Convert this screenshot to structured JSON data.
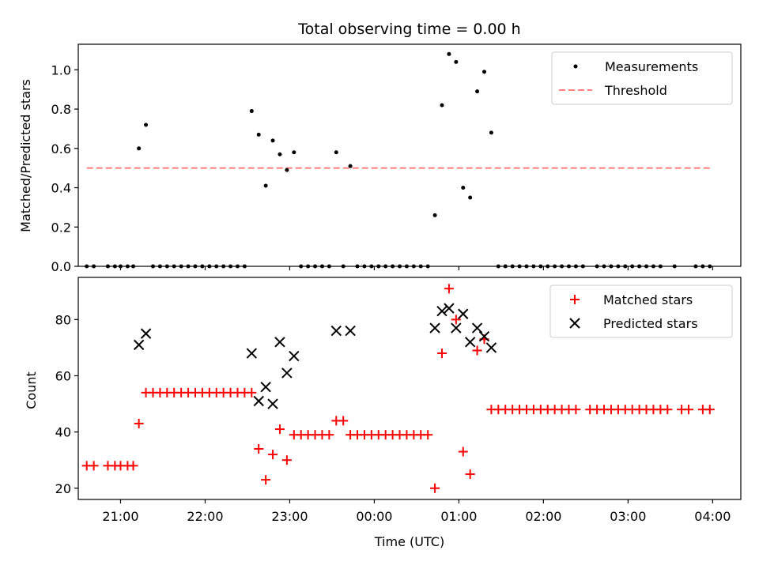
{
  "chart_data": [
    {
      "type": "scatter",
      "title": "Total observing time = 0.00 h",
      "ylabel": "Matched/Predicted stars",
      "xlabel": "",
      "ylim": [
        0,
        1.13
      ],
      "xlim": [
        "20:30",
        "04:20"
      ],
      "yticks": [
        "0.0",
        "0.2",
        "0.4",
        "0.6",
        "0.8",
        "1.0"
      ],
      "grid": false,
      "legend_position": "top-right",
      "series": [
        {
          "name": "Measurements",
          "color": "#000000",
          "marker": "dot",
          "points": [
            [
              "20:36",
              0
            ],
            [
              "20:41",
              0
            ],
            [
              "20:51",
              0
            ],
            [
              "20:56",
              0
            ],
            [
              "21:00",
              0
            ],
            [
              "21:05",
              0
            ],
            [
              "21:09",
              0
            ],
            [
              "21:13",
              0.6
            ],
            [
              "21:18",
              0.72
            ],
            [
              "21:23",
              0
            ],
            [
              "21:28",
              0
            ],
            [
              "21:33",
              0
            ],
            [
              "21:38",
              0
            ],
            [
              "21:43",
              0
            ],
            [
              "21:48",
              0
            ],
            [
              "21:53",
              0
            ],
            [
              "21:58",
              0
            ],
            [
              "22:03",
              0
            ],
            [
              "22:08",
              0
            ],
            [
              "22:13",
              0
            ],
            [
              "22:18",
              0
            ],
            [
              "22:23",
              0
            ],
            [
              "22:28",
              0
            ],
            [
              "22:33",
              0.79
            ],
            [
              "22:38",
              0.67
            ],
            [
              "22:43",
              0.41
            ],
            [
              "22:48",
              0.64
            ],
            [
              "22:53",
              0.57
            ],
            [
              "22:58",
              0.49
            ],
            [
              "23:03",
              0.58
            ],
            [
              "23:08",
              0
            ],
            [
              "23:13",
              0
            ],
            [
              "23:18",
              0
            ],
            [
              "23:23",
              0
            ],
            [
              "23:28",
              0
            ],
            [
              "23:33",
              0.58
            ],
            [
              "23:38",
              0
            ],
            [
              "23:43",
              0.51
            ],
            [
              "23:48",
              0
            ],
            [
              "23:53",
              0
            ],
            [
              "23:58",
              0
            ],
            [
              "00:03",
              0
            ],
            [
              "00:08",
              0
            ],
            [
              "00:13",
              0
            ],
            [
              "00:18",
              0
            ],
            [
              "00:23",
              0
            ],
            [
              "00:28",
              0
            ],
            [
              "00:33",
              0
            ],
            [
              "00:38",
              0
            ],
            [
              "00:43",
              0.26
            ],
            [
              "00:48",
              0.82
            ],
            [
              "00:53",
              1.08
            ],
            [
              "00:58",
              1.04
            ],
            [
              "01:03",
              0.4
            ],
            [
              "01:08",
              0.35
            ],
            [
              "01:13",
              0.89
            ],
            [
              "01:18",
              0.99
            ],
            [
              "01:23",
              0.68
            ],
            [
              "01:28",
              0
            ],
            [
              "01:33",
              0
            ],
            [
              "01:38",
              0
            ],
            [
              "01:43",
              0
            ],
            [
              "01:48",
              0
            ],
            [
              "01:53",
              0
            ],
            [
              "01:58",
              0
            ],
            [
              "02:03",
              0
            ],
            [
              "02:08",
              0
            ],
            [
              "02:13",
              0
            ],
            [
              "02:18",
              0
            ],
            [
              "02:23",
              0
            ],
            [
              "02:28",
              0
            ],
            [
              "02:38",
              0
            ],
            [
              "02:43",
              0
            ],
            [
              "02:48",
              0
            ],
            [
              "02:53",
              0
            ],
            [
              "02:58",
              0
            ],
            [
              "03:03",
              0
            ],
            [
              "03:08",
              0
            ],
            [
              "03:13",
              0
            ],
            [
              "03:18",
              0
            ],
            [
              "03:23",
              0
            ],
            [
              "03:33",
              0
            ],
            [
              "03:48",
              0
            ],
            [
              "03:53",
              0
            ],
            [
              "03:58",
              0
            ]
          ]
        },
        {
          "name": "Threshold",
          "color": "#ff7f7f",
          "marker": "dashed-line",
          "points": [
            [
              "20:36",
              0.5
            ],
            [
              "03:58",
              0.5
            ]
          ]
        }
      ]
    },
    {
      "type": "scatter",
      "title": "",
      "ylabel": "Count",
      "xlabel": "Time (UTC)",
      "ylim": [
        16,
        95
      ],
      "xlim": [
        "20:30",
        "04:20"
      ],
      "xticks": [
        "21:00",
        "22:00",
        "23:00",
        "00:00",
        "01:00",
        "02:00",
        "03:00",
        "04:00"
      ],
      "yticks": [
        "20",
        "40",
        "60",
        "80"
      ],
      "grid": false,
      "legend_position": "top-right",
      "series": [
        {
          "name": "Matched stars",
          "color": "#ff0000",
          "marker": "plus",
          "points": [
            [
              "20:36",
              28
            ],
            [
              "20:41",
              28
            ],
            [
              "20:51",
              28
            ],
            [
              "20:56",
              28
            ],
            [
              "21:00",
              28
            ],
            [
              "21:05",
              28
            ],
            [
              "21:09",
              28
            ],
            [
              "21:13",
              43
            ],
            [
              "21:18",
              54
            ],
            [
              "21:23",
              54
            ],
            [
              "21:28",
              54
            ],
            [
              "21:33",
              54
            ],
            [
              "21:38",
              54
            ],
            [
              "21:43",
              54
            ],
            [
              "21:48",
              54
            ],
            [
              "21:53",
              54
            ],
            [
              "21:58",
              54
            ],
            [
              "22:03",
              54
            ],
            [
              "22:08",
              54
            ],
            [
              "22:13",
              54
            ],
            [
              "22:18",
              54
            ],
            [
              "22:23",
              54
            ],
            [
              "22:28",
              54
            ],
            [
              "22:33",
              54
            ],
            [
              "22:38",
              34
            ],
            [
              "22:43",
              23
            ],
            [
              "22:48",
              32
            ],
            [
              "22:53",
              41
            ],
            [
              "22:58",
              30
            ],
            [
              "23:03",
              39
            ],
            [
              "23:08",
              39
            ],
            [
              "23:13",
              39
            ],
            [
              "23:18",
              39
            ],
            [
              "23:23",
              39
            ],
            [
              "23:28",
              39
            ],
            [
              "23:33",
              44
            ],
            [
              "23:38",
              44
            ],
            [
              "23:43",
              39
            ],
            [
              "23:48",
              39
            ],
            [
              "23:53",
              39
            ],
            [
              "23:58",
              39
            ],
            [
              "00:03",
              39
            ],
            [
              "00:08",
              39
            ],
            [
              "00:13",
              39
            ],
            [
              "00:18",
              39
            ],
            [
              "00:23",
              39
            ],
            [
              "00:28",
              39
            ],
            [
              "00:33",
              39
            ],
            [
              "00:38",
              39
            ],
            [
              "00:43",
              20
            ],
            [
              "00:48",
              68
            ],
            [
              "00:53",
              91
            ],
            [
              "00:58",
              80
            ],
            [
              "01:03",
              33
            ],
            [
              "01:08",
              25
            ],
            [
              "01:13",
              69
            ],
            [
              "01:18",
              73
            ],
            [
              "01:23",
              48
            ],
            [
              "01:28",
              48
            ],
            [
              "01:33",
              48
            ],
            [
              "01:38",
              48
            ],
            [
              "01:43",
              48
            ],
            [
              "01:48",
              48
            ],
            [
              "01:53",
              48
            ],
            [
              "01:58",
              48
            ],
            [
              "02:03",
              48
            ],
            [
              "02:08",
              48
            ],
            [
              "02:13",
              48
            ],
            [
              "02:18",
              48
            ],
            [
              "02:23",
              48
            ],
            [
              "02:33",
              48
            ],
            [
              "02:38",
              48
            ],
            [
              "02:43",
              48
            ],
            [
              "02:48",
              48
            ],
            [
              "02:53",
              48
            ],
            [
              "02:58",
              48
            ],
            [
              "03:03",
              48
            ],
            [
              "03:08",
              48
            ],
            [
              "03:13",
              48
            ],
            [
              "03:18",
              48
            ],
            [
              "03:23",
              48
            ],
            [
              "03:28",
              48
            ],
            [
              "03:38",
              48
            ],
            [
              "03:43",
              48
            ],
            [
              "03:53",
              48
            ],
            [
              "03:58",
              48
            ]
          ]
        },
        {
          "name": "Predicted stars",
          "color": "#000000",
          "marker": "x",
          "points": [
            [
              "21:13",
              71
            ],
            [
              "21:18",
              75
            ],
            [
              "22:33",
              68
            ],
            [
              "22:38",
              51
            ],
            [
              "22:43",
              56
            ],
            [
              "22:48",
              50
            ],
            [
              "22:53",
              72
            ],
            [
              "22:58",
              61
            ],
            [
              "23:03",
              67
            ],
            [
              "23:33",
              76
            ],
            [
              "23:43",
              76
            ],
            [
              "00:43",
              77
            ],
            [
              "00:48",
              83
            ],
            [
              "00:53",
              84
            ],
            [
              "00:58",
              77
            ],
            [
              "01:03",
              82
            ],
            [
              "01:08",
              72
            ],
            [
              "01:13",
              77
            ],
            [
              "01:18",
              74
            ],
            [
              "01:23",
              70
            ]
          ]
        }
      ]
    }
  ]
}
